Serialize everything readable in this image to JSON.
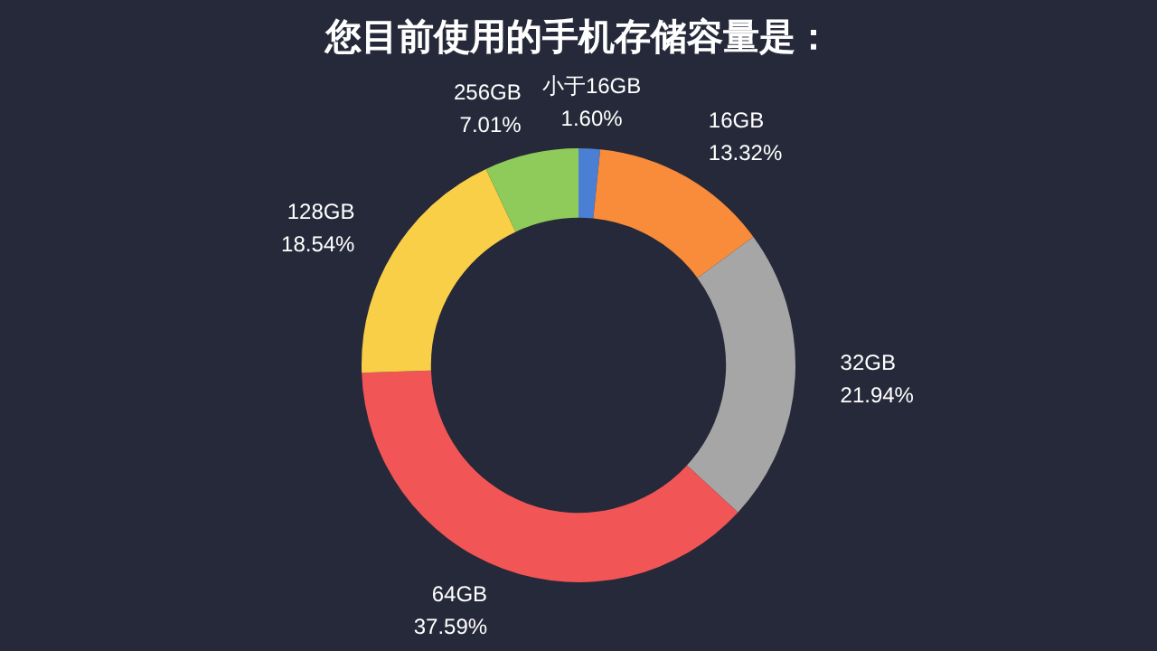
{
  "chart_data": {
    "type": "donut",
    "title": "您目前使用的手机存储容量是：",
    "categories": [
      "小于16GB",
      "16GB",
      "32GB",
      "64GB",
      "128GB",
      "256GB"
    ],
    "values": [
      1.6,
      13.32,
      21.94,
      37.59,
      18.54,
      7.01
    ],
    "value_labels": [
      "1.60%",
      "13.32%",
      "21.94%",
      "37.59%",
      "18.54%",
      "7.01%"
    ],
    "colors": [
      "#4a7fd4",
      "#f98c3a",
      "#a6a6a6",
      "#f25555",
      "#f9cf48",
      "#8fcb5a"
    ],
    "legend": false
  }
}
